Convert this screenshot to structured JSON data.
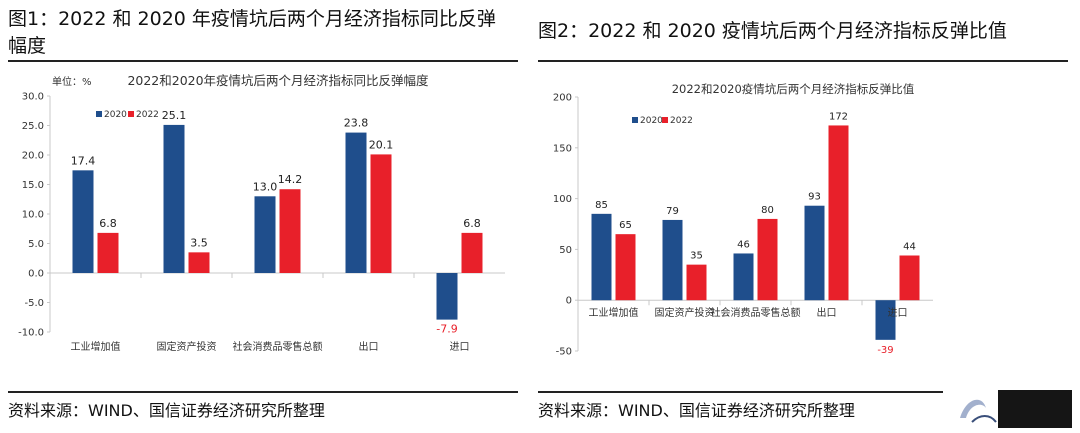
{
  "figure1": {
    "heading": "图1：2022 和 2020 年疫情坑后两个月经济指标同比反弹幅度",
    "source": "资料来源：WIND、国信证券经济研究所整理"
  },
  "figure2": {
    "heading": "图2：2022 和 2020 疫情坑后两个月经济指标反弹比值",
    "source": "资料来源：WIND、国信证券经济研究所整理"
  },
  "chart_data": [
    {
      "type": "bar",
      "title": "2022和2020年疫情坑后两个月经济指标同比反弹幅度",
      "unit_label": "单位：%",
      "categories": [
        "工业增加值",
        "固定资产投资",
        "社会消费品零售总额",
        "出口",
        "进口"
      ],
      "series": [
        {
          "name": "2020",
          "color": "#1f4e8c",
          "values": [
            17.4,
            25.1,
            13.0,
            23.8,
            -7.9
          ],
          "labels": [
            "17.4",
            "25.1",
            "13.0",
            "23.8",
            "-7.9"
          ]
        },
        {
          "name": "2022",
          "color": "#e8202a",
          "values": [
            6.8,
            3.5,
            14.2,
            20.1,
            6.8
          ],
          "labels": [
            "6.8",
            "3.5",
            "14.2",
            "20.1",
            "6.8"
          ]
        }
      ],
      "ylim": [
        -10,
        30
      ],
      "yticks": [
        "30.0",
        "25.0",
        "20.0",
        "15.0",
        "10.0",
        "5.0",
        "0.0",
        "-5.0",
        "-10.0"
      ],
      "ytick_values": [
        30,
        25,
        20,
        15,
        10,
        5,
        0,
        -5,
        -10
      ],
      "legend": "top-left",
      "grid": false
    },
    {
      "type": "bar",
      "title": "2022和2020疫情坑后两个月经济指标反弹比值",
      "categories": [
        "工业增加值",
        "固定资产投资",
        "社会消费品零售总额",
        "出口",
        "进口"
      ],
      "series": [
        {
          "name": "2020",
          "color": "#1f4e8c",
          "values": [
            85,
            79,
            46,
            93,
            -39
          ],
          "labels": [
            "85",
            "79",
            "46",
            "93",
            "-39"
          ]
        },
        {
          "name": "2022",
          "color": "#e8202a",
          "values": [
            65,
            35,
            80,
            172,
            44
          ],
          "labels": [
            "65",
            "35",
            "80",
            "172",
            "44"
          ]
        }
      ],
      "ylim": [
        -50,
        200
      ],
      "yticks": [
        "200",
        "150",
        "100",
        "50",
        "0",
        "-50"
      ],
      "ytick_values": [
        200,
        150,
        100,
        50,
        0,
        -50
      ],
      "legend": "top-left",
      "grid": false
    }
  ]
}
